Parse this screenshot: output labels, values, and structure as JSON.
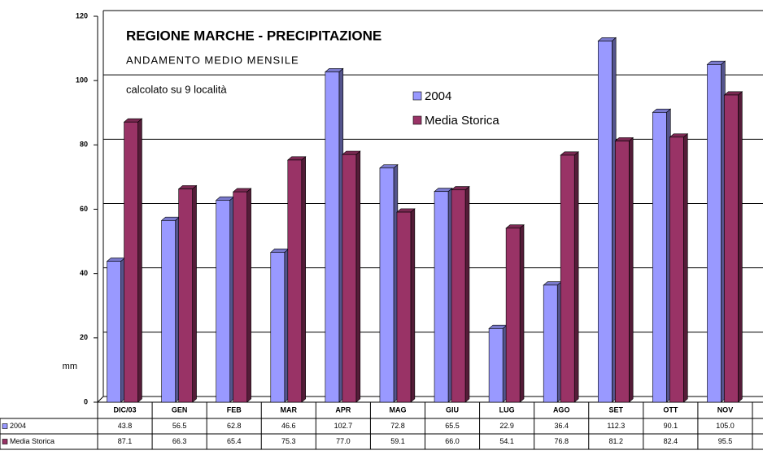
{
  "chart_data": {
    "type": "bar",
    "title": "REGIONE MARCHE - PRECIPITAZIONE",
    "subtitle": "ANDAMENTO MEDIO MENSILE",
    "annotation": "calcolato su 9 località",
    "y_axis_label": "mm",
    "categories": [
      "DIC/03",
      "GEN",
      "FEB",
      "MAR",
      "APR",
      "MAG",
      "GIU",
      "LUG",
      "AGO",
      "SET",
      "OTT",
      "NOV"
    ],
    "series": [
      {
        "name": "2004",
        "color": "#9999ff",
        "values": [
          43.8,
          56.5,
          62.8,
          46.6,
          102.7,
          72.8,
          65.5,
          22.9,
          36.4,
          112.3,
          90.1,
          105.0
        ],
        "value_labels": [
          "43.8",
          "56.5",
          "62.8",
          "46.6",
          "102.7",
          "72.8",
          "65.5",
          "22.9",
          "36.4",
          "112.3",
          "90.1",
          "105.0"
        ]
      },
      {
        "name": "Media Storica",
        "color": "#993366",
        "values": [
          87.1,
          66.3,
          65.4,
          75.3,
          77.0,
          59.1,
          66.0,
          54.1,
          76.8,
          81.2,
          82.4,
          95.5
        ],
        "value_labels": [
          "87.1",
          "66.3",
          "65.4",
          "75.3",
          "77.0",
          "59.1",
          "66.0",
          "54.1",
          "76.8",
          "81.2",
          "82.4",
          "95.5"
        ]
      }
    ],
    "ylim": [
      0,
      120
    ],
    "yticks": [
      0,
      20,
      40,
      60,
      80,
      100,
      120
    ],
    "grid": true,
    "legend": "top"
  }
}
